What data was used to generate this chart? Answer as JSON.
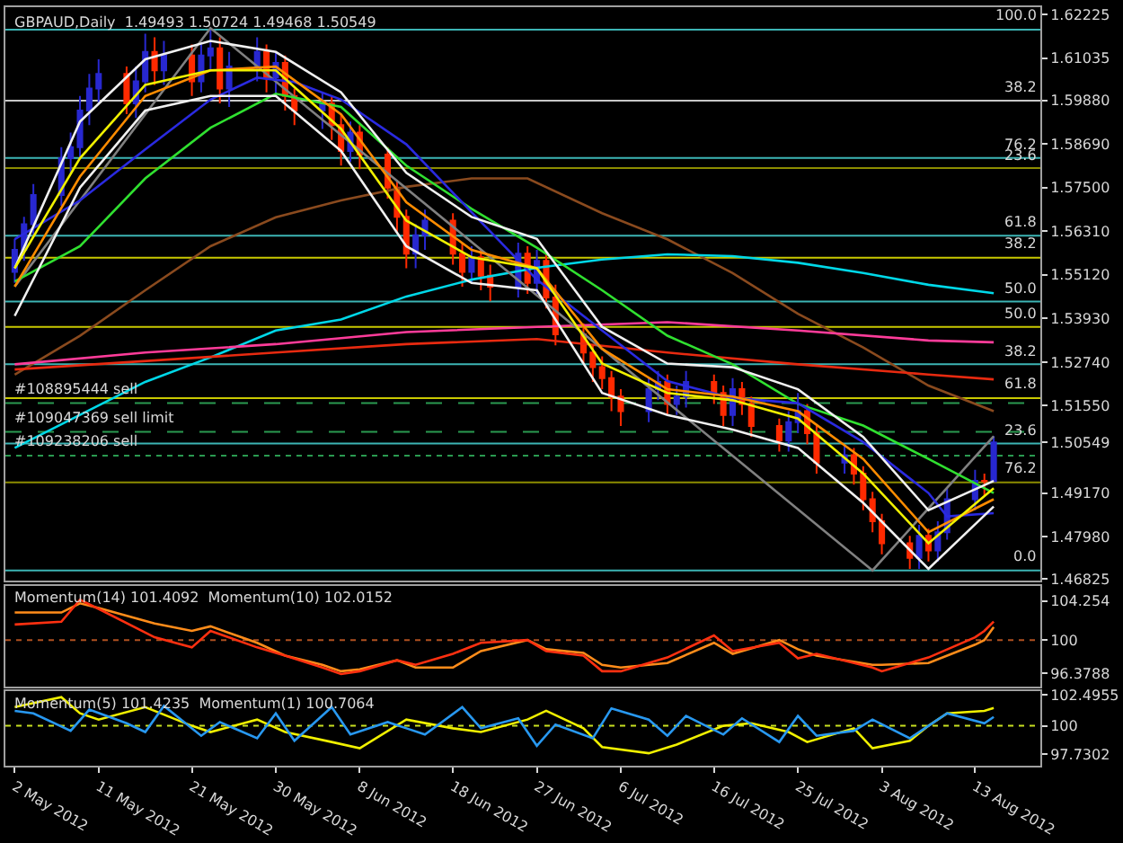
{
  "chart_data": [
    {
      "type": "candlestick",
      "title": "GBPAUD,Daily  1.49493 1.50724 1.49468 1.50549",
      "tick_labels": "y",
      "grid": false,
      "x": [
        "2012-05-02",
        "2012-05-03",
        "2012-05-04",
        "2012-05-07",
        "2012-05-08",
        "2012-05-09",
        "2012-05-10",
        "2012-05-11",
        "2012-05-14",
        "2012-05-15",
        "2012-05-16",
        "2012-05-17",
        "2012-05-18",
        "2012-05-21",
        "2012-05-22",
        "2012-05-23",
        "2012-05-24",
        "2012-05-25",
        "2012-05-28",
        "2012-05-29",
        "2012-05-30",
        "2012-05-31",
        "2012-06-01",
        "2012-06-04",
        "2012-06-05",
        "2012-06-06",
        "2012-06-07",
        "2012-06-08",
        "2012-06-11",
        "2012-06-12",
        "2012-06-13",
        "2012-06-14",
        "2012-06-15",
        "2012-06-18",
        "2012-06-19",
        "2012-06-20",
        "2012-06-21",
        "2012-06-22",
        "2012-06-25",
        "2012-06-26",
        "2012-06-27",
        "2012-06-28",
        "2012-06-29",
        "2012-07-02",
        "2012-07-03",
        "2012-07-04",
        "2012-07-05",
        "2012-07-06",
        "2012-07-09",
        "2012-07-10",
        "2012-07-11",
        "2012-07-12",
        "2012-07-13",
        "2012-07-16",
        "2012-07-17",
        "2012-07-18",
        "2012-07-19",
        "2012-07-20",
        "2012-07-23",
        "2012-07-24",
        "2012-07-25",
        "2012-07-26",
        "2012-07-27",
        "2012-07-30",
        "2012-07-31",
        "2012-08-01",
        "2012-08-02",
        "2012-08-03",
        "2012-08-06",
        "2012-08-07",
        "2012-08-08",
        "2012-08-09",
        "2012-08-10",
        "2012-08-13",
        "2012-08-14",
        "2012-08-15"
      ],
      "ohlc": [
        [
          1.552,
          1.561,
          1.549,
          1.558
        ],
        [
          1.558,
          1.567,
          1.555,
          1.565
        ],
        [
          1.565,
          1.576,
          1.562,
          1.573
        ],
        [
          1.573,
          1.586,
          1.57,
          1.583
        ],
        [
          1.583,
          1.59,
          1.579,
          1.586
        ],
        [
          1.586,
          1.6,
          1.583,
          1.596
        ],
        [
          1.596,
          1.606,
          1.592,
          1.602
        ],
        [
          1.602,
          1.61,
          1.598,
          1.606
        ],
        [
          1.606,
          1.608,
          1.595,
          1.598
        ],
        [
          1.598,
          1.608,
          1.594,
          1.604
        ],
        [
          1.604,
          1.617,
          1.601,
          1.612
        ],
        [
          1.612,
          1.616,
          1.603,
          1.607
        ],
        [
          1.607,
          1.615,
          1.603,
          1.611
        ],
        [
          1.611,
          1.614,
          1.6,
          1.604
        ],
        [
          1.604,
          1.614,
          1.601,
          1.611
        ],
        [
          1.611,
          1.6185,
          1.607,
          1.613
        ],
        [
          1.613,
          1.616,
          1.598,
          1.602
        ],
        [
          1.602,
          1.612,
          1.597,
          1.608
        ],
        [
          1.608,
          1.616,
          1.604,
          1.612
        ],
        [
          1.612,
          1.614,
          1.601,
          1.605
        ],
        [
          1.605,
          1.612,
          1.6,
          1.609
        ],
        [
          1.609,
          1.611,
          1.596,
          1.6
        ],
        [
          1.6,
          1.602,
          1.592,
          1.596
        ],
        [
          1.596,
          1.601,
          1.591,
          1.598
        ],
        [
          1.598,
          1.6,
          1.588,
          1.592
        ],
        [
          1.592,
          1.595,
          1.581,
          1.585
        ],
        [
          1.585,
          1.593,
          1.582,
          1.59
        ],
        [
          1.59,
          1.592,
          1.58,
          1.584
        ],
        [
          1.584,
          1.586,
          1.572,
          1.575
        ],
        [
          1.575,
          1.577,
          1.563,
          1.567
        ],
        [
          1.567,
          1.569,
          1.553,
          1.557
        ],
        [
          1.557,
          1.565,
          1.553,
          1.562
        ],
        [
          1.562,
          1.569,
          1.558,
          1.566
        ],
        [
          1.566,
          1.568,
          1.554,
          1.557
        ],
        [
          1.557,
          1.56,
          1.548,
          1.552
        ],
        [
          1.552,
          1.559,
          1.549,
          1.556
        ],
        [
          1.556,
          1.558,
          1.547,
          1.551
        ],
        [
          1.551,
          1.554,
          1.544,
          1.548
        ],
        [
          1.548,
          1.56,
          1.545,
          1.557
        ],
        [
          1.557,
          1.559,
          1.546,
          1.549
        ],
        [
          1.549,
          1.558,
          1.546,
          1.555
        ],
        [
          1.555,
          1.557,
          1.542,
          1.545
        ],
        [
          1.545,
          1.5485,
          1.532,
          1.535
        ],
        [
          1.535,
          1.538,
          1.527,
          1.53
        ],
        [
          1.53,
          1.532,
          1.522,
          1.526
        ],
        [
          1.526,
          1.529,
          1.52,
          1.523
        ],
        [
          1.523,
          1.525,
          1.514,
          1.518
        ],
        [
          1.518,
          1.52,
          1.51,
          1.514
        ],
        [
          1.514,
          1.523,
          1.511,
          1.52
        ],
        [
          1.52,
          1.525,
          1.517,
          1.522
        ],
        [
          1.522,
          1.524,
          1.513,
          1.516
        ],
        [
          1.516,
          1.521,
          1.513,
          1.518
        ],
        [
          1.518,
          1.525,
          1.515,
          1.522
        ],
        [
          1.522,
          1.524,
          1.516,
          1.519
        ],
        [
          1.519,
          1.521,
          1.51,
          1.513
        ],
        [
          1.513,
          1.523,
          1.51,
          1.52
        ],
        [
          1.52,
          1.522,
          1.513,
          1.516
        ],
        [
          1.516,
          1.518,
          1.507,
          1.51
        ],
        [
          1.51,
          1.512,
          1.503,
          1.506
        ],
        [
          1.506,
          1.514,
          1.503,
          1.511
        ],
        [
          1.511,
          1.519,
          1.508,
          1.514
        ],
        [
          1.514,
          1.516,
          1.505,
          1.508
        ],
        [
          1.508,
          1.51,
          1.497,
          1.5
        ],
        [
          1.5,
          1.505,
          1.497,
          1.502
        ],
        [
          1.502,
          1.504,
          1.494,
          1.497
        ],
        [
          1.497,
          1.499,
          1.487,
          1.49
        ],
        [
          1.49,
          1.492,
          1.481,
          1.484
        ],
        [
          1.484,
          1.486,
          1.475,
          1.478
        ],
        [
          1.478,
          1.48,
          1.471,
          1.474
        ],
        [
          1.474,
          1.483,
          1.471,
          1.48
        ],
        [
          1.48,
          1.482,
          1.473,
          1.476
        ],
        [
          1.476,
          1.484,
          1.473,
          1.481
        ],
        [
          1.481,
          1.493,
          1.479,
          1.49
        ],
        [
          1.49,
          1.498,
          1.487,
          1.495
        ],
        [
          1.495,
          1.497,
          1.491,
          1.49493
        ],
        [
          1.49493,
          1.50724,
          1.49468,
          1.50549
        ]
      ],
      "colors": [
        "#2828d0",
        "#2828d0",
        "#2828d0",
        "#2828d0",
        "#2828d0",
        "#2828d0",
        "#2828d0",
        "#2828d0",
        "#ff2a00",
        "#2828d0",
        "#2828d0",
        "#ff2a00",
        "#2828d0",
        "#ff2a00",
        "#2828d0",
        "#2828d0",
        "#ff2a00",
        "#2828d0",
        "#2828d0",
        "#ff2a00",
        "#2828d0",
        "#ff2a00",
        "#ff2a00",
        "#2828d0",
        "#ff2a00",
        "#ff2a00",
        "#2828d0",
        "#ff2a00",
        "#ff2a00",
        "#ff2a00",
        "#ff2a00",
        "#2828d0",
        "#2828d0",
        "#ff2a00",
        "#ff2a00",
        "#2828d0",
        "#ff2a00",
        "#ff2a00",
        "#2828d0",
        "#ff2a00",
        "#2828d0",
        "#ff2a00",
        "#ff2a00",
        "#ff2a00",
        "#ff2a00",
        "#ff2a00",
        "#ff2a00",
        "#ff2a00",
        "#2828d0",
        "#2828d0",
        "#ff2a00",
        "#2828d0",
        "#2828d0",
        "#ff2a00",
        "#ff2a00",
        "#2828d0",
        "#ff2a00",
        "#ff2a00",
        "#ff2a00",
        "#2828d0",
        "#2828d0",
        "#ff2a00",
        "#ff2a00",
        "#2828d0",
        "#ff2a00",
        "#ff2a00",
        "#ff2a00",
        "#ff2a00",
        "#ff2a00",
        "#2828d0",
        "#ff2a00",
        "#2828d0",
        "#2828d0",
        "#2828d0",
        "#ff2a00",
        "#2828d0"
      ],
      "series": [
        {
          "type": "line",
          "color": "#8a4a1e",
          "x": [
            "2012-05-02",
            "2012-05-09",
            "2012-05-16",
            "2012-05-23",
            "2012-05-30",
            "2012-06-06",
            "2012-06-13",
            "2012-06-20",
            "2012-06-26",
            "2012-07-04",
            "2012-07-11",
            "2012-07-18",
            "2012-07-25",
            "2012-08-01",
            "2012-08-08",
            "2012-08-15"
          ],
          "values": [
            1.524,
            1.5346,
            1.547,
            1.559,
            1.5669,
            1.5715,
            1.5752,
            1.5775,
            1.5775,
            1.568,
            1.5609,
            1.5517,
            1.5406,
            1.5314,
            1.521,
            1.514
          ]
        },
        {
          "type": "line",
          "color": "#00d8e8",
          "x": [
            "2012-05-02",
            "2012-05-09",
            "2012-05-16",
            "2012-05-23",
            "2012-05-30",
            "2012-06-06",
            "2012-06-13",
            "2012-06-20",
            "2012-06-27",
            "2012-07-04",
            "2012-07-11",
            "2012-07-18",
            "2012-07-25",
            "2012-08-01",
            "2012-08-08",
            "2012-08-15"
          ],
          "values": [
            1.504,
            1.513,
            1.522,
            1.5287,
            1.536,
            1.539,
            1.5453,
            1.5499,
            1.5531,
            1.5554,
            1.5568,
            1.5563,
            1.5545,
            1.5517,
            1.5485,
            1.5462
          ]
        },
        {
          "type": "line",
          "color": "#ff3c9a",
          "x": [
            "2012-05-02",
            "2012-05-16",
            "2012-05-30",
            "2012-06-13",
            "2012-06-27",
            "2012-07-11",
            "2012-07-25",
            "2012-08-08",
            "2012-08-15"
          ],
          "values": [
            1.5268,
            1.53,
            1.5323,
            1.5356,
            1.537,
            1.5383,
            1.536,
            1.5333,
            1.5328
          ]
        },
        {
          "type": "line",
          "color": "#e82a10",
          "x": [
            "2012-05-02",
            "2012-05-30",
            "2012-06-13",
            "2012-06-27",
            "2012-07-11",
            "2012-07-25",
            "2012-08-08",
            "2012-08-15"
          ],
          "values": [
            1.5254,
            1.53,
            1.5323,
            1.5337,
            1.53,
            1.5268,
            1.524,
            1.5227
          ]
        },
        {
          "type": "line",
          "color": "#808080",
          "x": [
            "2012-05-02",
            "2012-05-23",
            "2012-08-02",
            "2012-08-15"
          ],
          "values": [
            1.548,
            1.6185,
            1.4706,
            1.5072
          ]
        },
        {
          "type": "line",
          "color": "#30e030",
          "x": [
            "2012-05-02",
            "2012-05-09",
            "2012-05-16",
            "2012-05-23",
            "2012-05-30",
            "2012-06-06",
            "2012-06-13",
            "2012-06-20",
            "2012-06-27",
            "2012-07-04",
            "2012-07-11",
            "2012-07-18",
            "2012-07-25",
            "2012-08-01",
            "2012-08-08",
            "2012-08-15"
          ],
          "values": [
            1.5494,
            1.559,
            1.5775,
            1.5913,
            1.6006,
            1.597,
            1.581,
            1.5692,
            1.5586,
            1.547,
            1.5346,
            1.5268,
            1.516,
            1.5101,
            1.501,
            1.4917
          ]
        },
        {
          "type": "line",
          "color": "#2a2ae0",
          "x": [
            "2012-05-02",
            "2012-05-09",
            "2012-05-16",
            "2012-05-23",
            "2012-05-28",
            "2012-06-01",
            "2012-06-06",
            "2012-06-13",
            "2012-06-20",
            "2012-06-27",
            "2012-07-04",
            "2012-07-11",
            "2012-07-18",
            "2012-07-25",
            "2012-08-01",
            "2012-08-08",
            "2012-08-10",
            "2012-08-15"
          ],
          "values": [
            1.5609,
            1.5715,
            1.5854,
            1.599,
            1.605,
            1.6038,
            1.599,
            1.5868,
            1.5683,
            1.5499,
            1.536,
            1.5222,
            1.5176,
            1.5162,
            1.5056,
            1.4917,
            1.4853,
            1.4862
          ]
        },
        {
          "type": "line",
          "color": "#f0f0f0",
          "x": [
            "2012-05-02",
            "2012-05-09",
            "2012-05-16",
            "2012-05-23",
            "2012-05-30",
            "2012-06-06",
            "2012-06-13",
            "2012-06-20",
            "2012-06-27",
            "2012-07-04",
            "2012-07-11",
            "2012-07-18",
            "2012-07-25",
            "2012-08-01",
            "2012-08-08",
            "2012-08-15"
          ],
          "values": [
            1.553,
            1.593,
            1.61,
            1.615,
            1.612,
            1.601,
            1.579,
            1.567,
            1.561,
            1.537,
            1.527,
            1.526,
            1.52,
            1.507,
            1.487,
            1.495
          ]
        },
        {
          "type": "line",
          "color": "#f0f0f0",
          "x": [
            "2012-05-02",
            "2012-05-09",
            "2012-05-16",
            "2012-05-23",
            "2012-05-30",
            "2012-06-06",
            "2012-06-13",
            "2012-06-20",
            "2012-06-27",
            "2012-07-04",
            "2012-07-11",
            "2012-07-18",
            "2012-07-25",
            "2012-08-01",
            "2012-08-08",
            "2012-08-15"
          ],
          "values": [
            1.54,
            1.575,
            1.596,
            1.6,
            1.6,
            1.585,
            1.559,
            1.549,
            1.547,
            1.519,
            1.513,
            1.509,
            1.504,
            1.489,
            1.471,
            1.488
          ]
        },
        {
          "type": "line",
          "color": "#ff8c00",
          "x": [
            "2012-05-02",
            "2012-05-09",
            "2012-05-16",
            "2012-05-23",
            "2012-05-30",
            "2012-06-06",
            "2012-06-13",
            "2012-06-20",
            "2012-06-27",
            "2012-07-04",
            "2012-07-11",
            "2012-07-18",
            "2012-07-25",
            "2012-08-01",
            "2012-08-08",
            "2012-08-15"
          ],
          "values": [
            1.548,
            1.578,
            1.6,
            1.607,
            1.608,
            1.595,
            1.571,
            1.558,
            1.553,
            1.531,
            1.52,
            1.518,
            1.514,
            1.501,
            1.481,
            1.49
          ]
        },
        {
          "type": "line",
          "color": "#f0f000",
          "x": [
            "2012-05-02",
            "2012-05-09",
            "2012-05-16",
            "2012-05-23",
            "2012-05-30",
            "2012-06-06",
            "2012-06-13",
            "2012-06-20",
            "2012-06-27",
            "2012-07-04",
            "2012-07-11",
            "2012-07-18",
            "2012-07-25",
            "2012-08-01",
            "2012-08-08",
            "2012-08-15"
          ],
          "values": [
            1.553,
            1.583,
            1.603,
            1.607,
            1.607,
            1.591,
            1.566,
            1.556,
            1.553,
            1.527,
            1.519,
            1.517,
            1.512,
            1.497,
            1.478,
            1.493
          ]
        }
      ],
      "xlim": [
        "2012-05-01",
        "2012-08-20"
      ],
      "ylim": [
        1.4678,
        1.6242
      ],
      "yticks": [
        1.62225,
        1.61035,
        {
          "value": 1.5988,
          "label": "1.59880"
        },
        {
          "value": 1.5869,
          "label": "1.58690"
        },
        {
          "value": 1.575,
          "label": "1.57500"
        },
        {
          "value": 1.5631,
          "label": "1.56310"
        },
        {
          "value": 1.5512,
          "label": "1.55120"
        },
        {
          "value": 1.5393,
          "label": "1.53930"
        },
        {
          "value": 1.5274,
          "label": "1.52740"
        },
        {
          "value": 1.5155,
          "label": "1.51550"
        },
        1.50549,
        {
          "value": 1.4917,
          "label": "1.49170"
        },
        {
          "value": 1.4798,
          "label": "1.47980"
        },
        1.46825
      ],
      "ref_lines": [
        {
          "axis": "y",
          "value": 1.6181,
          "color": "#3cb4b4",
          "line_style": "solid"
        },
        {
          "axis": "y",
          "value": 1.5987,
          "color": "#c8c8c8",
          "line_style": "solid"
        },
        {
          "axis": "y",
          "value": 1.5831,
          "color": "#3cb4b4",
          "line_style": "solid"
        },
        {
          "axis": "y",
          "value": 1.5803,
          "color": "#8c8c00",
          "line_style": "solid"
        },
        {
          "axis": "y",
          "value": 1.5619,
          "color": "#3cb4b4",
          "line_style": "solid"
        },
        {
          "axis": "y",
          "value": 1.5559,
          "color": "#c8c800",
          "line_style": "solid"
        },
        {
          "axis": "y",
          "value": 1.5439,
          "color": "#3cb4b4",
          "line_style": "solid"
        },
        {
          "axis": "y",
          "value": 1.537,
          "color": "#c8c800",
          "line_style": "solid"
        },
        {
          "axis": "y",
          "value": 1.5268,
          "color": "#3cb4b4",
          "line_style": "solid"
        },
        {
          "axis": "y",
          "value": 1.5176,
          "color": "#c8c800",
          "line_style": "solid"
        },
        {
          "axis": "y",
          "value": 1.5052,
          "color": "#3cb4b4",
          "line_style": "solid"
        },
        {
          "axis": "y",
          "value": 1.4946,
          "color": "#8c8c00",
          "line_style": "solid"
        },
        {
          "axis": "y",
          "value": 1.4706,
          "color": "#3cb4b4",
          "line_style": "solid"
        },
        {
          "axis": "y",
          "value": 1.5162,
          "label": "#108895444 sell",
          "color": "#2a9a50",
          "line_style": "dashed"
        },
        {
          "axis": "y",
          "value": 1.5084,
          "label": "#109047369 sell limit",
          "color": "#2a9a50",
          "line_style": "dashed"
        },
        {
          "axis": "y",
          "value": 1.5019,
          "label": "#109238206 sell",
          "color": "#2a9a50",
          "line_style": "dotted"
        }
      ],
      "annotations": [
        {
          "text": "100.0",
          "x": "2012-08-20",
          "y": 1.6181
        },
        {
          "text": "38.2",
          "x": "2012-08-20",
          "y": 1.5987
        },
        {
          "text": "76.2",
          "x": "2012-08-20",
          "y": 1.5831
        },
        {
          "text": "23.6",
          "x": "2012-08-20",
          "y": 1.5803
        },
        {
          "text": "61.8",
          "x": "2012-08-20",
          "y": 1.5619
        },
        {
          "text": "38.2",
          "x": "2012-08-20",
          "y": 1.5559
        },
        {
          "text": "50.0",
          "x": "2012-08-20",
          "y": 1.5439
        },
        {
          "text": "50.0",
          "x": "2012-08-20",
          "y": 1.537
        },
        {
          "text": "38.2",
          "x": "2012-08-20",
          "y": 1.5268
        },
        {
          "text": "61.8",
          "x": "2012-08-20",
          "y": 1.5176
        },
        {
          "text": "23.6",
          "x": "2012-08-20",
          "y": 1.5052
        },
        {
          "text": "76.2",
          "x": "2012-08-20",
          "y": 1.4946
        },
        {
          "text": "0.0",
          "x": "2012-08-20",
          "y": 1.4706
        }
      ]
    },
    {
      "type": "line",
      "title": "Momentum(14) 101.4092  Momentum(10) 102.0152",
      "tick_labels": "y",
      "grid": false,
      "x": [
        "2012-05-02",
        "2012-05-07",
        "2012-05-09",
        "2012-05-11",
        "2012-05-17",
        "2012-05-21",
        "2012-05-23",
        "2012-05-28",
        "2012-05-31",
        "2012-06-04",
        "2012-06-06",
        "2012-06-08",
        "2012-06-12",
        "2012-06-14",
        "2012-06-18",
        "2012-06-21",
        "2012-06-26",
        "2012-06-28",
        "2012-07-02",
        "2012-07-04",
        "2012-07-06",
        "2012-07-11",
        "2012-07-16",
        "2012-07-18",
        "2012-07-23",
        "2012-07-25",
        "2012-07-27",
        "2012-08-02",
        "2012-08-03",
        "2012-08-08",
        "2012-08-13",
        "2012-08-14",
        "2012-08-15"
      ],
      "series": [
        {
          "color": "#ff8c1a",
          "values": [
            103.0,
            103.0,
            104.0,
            103.5,
            101.8,
            101.0,
            101.5,
            99.7,
            98.3,
            97.3,
            96.6,
            96.8,
            97.8,
            97.0,
            97.0,
            98.8,
            100.0,
            99.0,
            98.6,
            97.3,
            97.0,
            97.5,
            99.7,
            98.5,
            100.0,
            99.0,
            98.3,
            97.3,
            97.3,
            97.5,
            99.5,
            100.0,
            101.4092
          ]
        },
        {
          "color": "#ff3010",
          "values": [
            101.7,
            102.0,
            104.4,
            103.4,
            100.3,
            99.2,
            101.0,
            99.2,
            98.3,
            97.0,
            96.3,
            96.6,
            97.8,
            97.3,
            98.5,
            99.7,
            100.0,
            98.8,
            98.3,
            96.6,
            96.6,
            98.1,
            100.5,
            98.8,
            99.7,
            98.0,
            98.5,
            97.0,
            96.6,
            98.1,
            100.3,
            101.0,
            102.0152
          ]
        }
      ],
      "xlim": [
        "2012-05-01",
        "2012-08-20"
      ],
      "ylim": [
        94.9,
        105.9
      ],
      "yticks": [
        104.254,
        100,
        96.3788
      ],
      "ref_lines": [
        {
          "axis": "y",
          "value": 100,
          "color": "#b05020",
          "line_style": "dotted"
        }
      ]
    },
    {
      "type": "line",
      "title": "Momentum(5) 101.4235  Momentum(1) 100.7064",
      "grid": false,
      "series": [
        {
          "color": "#f0f000",
          "x": [
            "2012-05-02",
            "2012-05-07",
            "2012-05-09",
            "2012-05-11",
            "2012-05-16",
            "2012-05-21",
            "2012-05-23",
            "2012-05-28",
            "2012-05-31",
            "2012-06-05",
            "2012-06-08",
            "2012-06-13",
            "2012-06-18",
            "2012-06-21",
            "2012-06-26",
            "2012-06-28",
            "2012-07-02",
            "2012-07-04",
            "2012-07-09",
            "2012-07-12",
            "2012-07-17",
            "2012-07-20",
            "2012-07-24",
            "2012-07-26",
            "2012-07-31",
            "2012-08-02",
            "2012-08-06",
            "2012-08-08",
            "2012-08-10",
            "2012-08-14",
            "2012-08-15"
          ],
          "values": [
            101.5,
            102.3,
            101.0,
            100.5,
            101.5,
            100.0,
            99.5,
            100.5,
            99.5,
            98.7,
            98.2,
            100.5,
            99.8,
            99.5,
            100.5,
            101.2,
            99.8,
            98.3,
            97.8,
            98.5,
            100.0,
            100.2,
            99.5,
            98.7,
            99.8,
            98.2,
            98.8,
            100.0,
            101.0,
            101.2,
            101.4235
          ]
        },
        {
          "color": "#2898f0",
          "x": [
            "2012-05-02",
            "2012-05-04",
            "2012-05-08",
            "2012-05-10",
            "2012-05-14",
            "2012-05-16",
            "2012-05-18",
            "2012-05-22",
            "2012-05-24",
            "2012-05-28",
            "2012-05-30",
            "2012-06-01",
            "2012-06-05",
            "2012-06-07",
            "2012-06-11",
            "2012-06-13",
            "2012-06-15",
            "2012-06-19",
            "2012-06-21",
            "2012-06-25",
            "2012-06-27",
            "2012-06-29",
            "2012-07-03",
            "2012-07-05",
            "2012-07-09",
            "2012-07-11",
            "2012-07-13",
            "2012-07-17",
            "2012-07-19",
            "2012-07-23",
            "2012-07-25",
            "2012-07-27",
            "2012-07-31",
            "2012-08-02",
            "2012-08-06",
            "2012-08-08",
            "2012-08-10",
            "2012-08-14",
            "2012-08-15"
          ],
          "values": [
            101.2,
            101.0,
            99.6,
            101.3,
            100.2,
            99.5,
            101.6,
            99.2,
            100.3,
            99.0,
            101.0,
            98.8,
            101.5,
            99.3,
            100.3,
            99.8,
            99.3,
            101.5,
            99.8,
            100.6,
            98.4,
            100.1,
            99.0,
            101.4,
            100.5,
            99.2,
            100.8,
            99.3,
            100.6,
            98.7,
            100.8,
            99.2,
            99.6,
            100.5,
            99.0,
            100.0,
            101.0,
            100.2,
            100.7064
          ]
        }
      ],
      "xlim": [
        "2012-05-01",
        "2012-08-20"
      ],
      "ylim": [
        96.8,
        102.76
      ],
      "yticks": [
        102.4955,
        100,
        97.7302
      ],
      "xticks": [
        {
          "value": "2012-05-02",
          "label": "2 May 2012"
        },
        {
          "value": "2012-05-11",
          "label": "11 May 2012"
        },
        {
          "value": "2012-05-21",
          "label": "21 May 2012"
        },
        {
          "value": "2012-05-30",
          "label": "30 May 2012"
        },
        {
          "value": "2012-06-08",
          "label": "8 Jun 2012"
        },
        {
          "value": "2012-06-18",
          "label": "18 Jun 2012"
        },
        {
          "value": "2012-06-27",
          "label": "27 Jun 2012"
        },
        {
          "value": "2012-07-06",
          "label": "6 Jul 2012"
        },
        {
          "value": "2012-07-16",
          "label": "16 Jul 2012"
        },
        {
          "value": "2012-07-25",
          "label": "25 Jul 2012"
        },
        {
          "value": "2012-08-03",
          "label": "3 Aug 2012"
        },
        {
          "value": "2012-08-13",
          "label": "13 Aug 2012"
        }
      ],
      "ref_lines": [
        {
          "axis": "y",
          "value": 100,
          "color": "#c8e020",
          "line_style": "dotted"
        }
      ]
    }
  ]
}
